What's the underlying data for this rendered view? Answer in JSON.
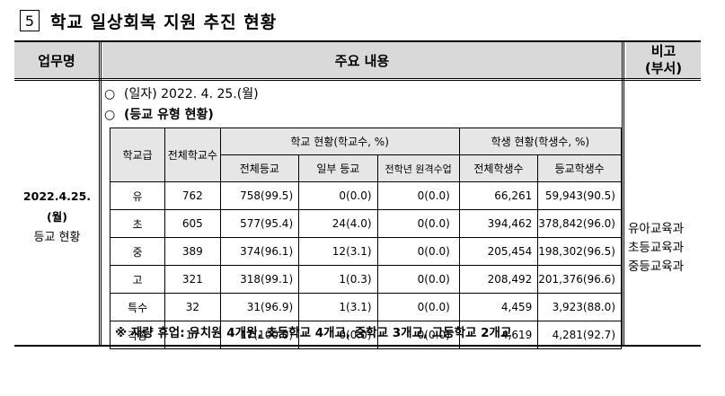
{
  "title": {
    "number": "5",
    "text": "학교 일상회복 지원 추진 현황"
  },
  "header": {
    "col1": "업무명",
    "col2": "주요 내용",
    "col3_line1": "비고",
    "col3_line2": "(부서)"
  },
  "task": {
    "date": "2022.4.25.(월)",
    "name": "등교 현황"
  },
  "bullets": [
    {
      "mark": "○",
      "text": "(일자) 2022. 4. 25.(월)"
    },
    {
      "mark": "○",
      "text": "(등교 유형 현황)"
    }
  ],
  "table": {
    "h_level": "학교급",
    "h_total_schools": "전체학교수",
    "h_school_status": "학교 현황(학교수, %)",
    "h_student_status": "학생 현황(학생수, %)",
    "sub_headers": [
      "전체등교",
      "일부 등교",
      "전학년 원격수업",
      "전체학생수",
      "등교학생수"
    ],
    "rows": [
      {
        "level": "유",
        "total": "762",
        "full": "758(99.5)",
        "partial": "0(0.0)",
        "remote": "0(0.0)",
        "students": "66,261",
        "attending": "59,943(90.5)"
      },
      {
        "level": "초",
        "total": "605",
        "full": "577(95.4)",
        "partial": "24(4.0)",
        "remote": "0(0.0)",
        "students": "394,462",
        "attending": "378,842(96.0)"
      },
      {
        "level": "중",
        "total": "389",
        "full": "374(96.1)",
        "partial": "12(3.1)",
        "remote": "0(0.0)",
        "students": "205,454",
        "attending": "198,302(96.5)"
      },
      {
        "level": "고",
        "total": "321",
        "full": "318(99.1)",
        "partial": "1(0.3)",
        "remote": "0(0.0)",
        "students": "208,492",
        "attending": "201,376(96.6)"
      },
      {
        "level": "특수",
        "total": "32",
        "full": "31(96.9)",
        "partial": "1(3.1)",
        "remote": "0(0.0)",
        "students": "4,459",
        "attending": "3,923(88.0)"
      },
      {
        "level": "각종",
        "total": "17",
        "full": "17(100.0)",
        "partial": "0(0.0)",
        "remote": "0(0.0)",
        "students": "4,619",
        "attending": "4,281(92.7)"
      }
    ]
  },
  "note": "※ 재량 휴업: 유치원 4개원, 초등학교 4개교, 중학교 3개교, 고등학교 2개교",
  "remarks": [
    "유아교육과",
    "초등교육과",
    "중등교육과"
  ]
}
